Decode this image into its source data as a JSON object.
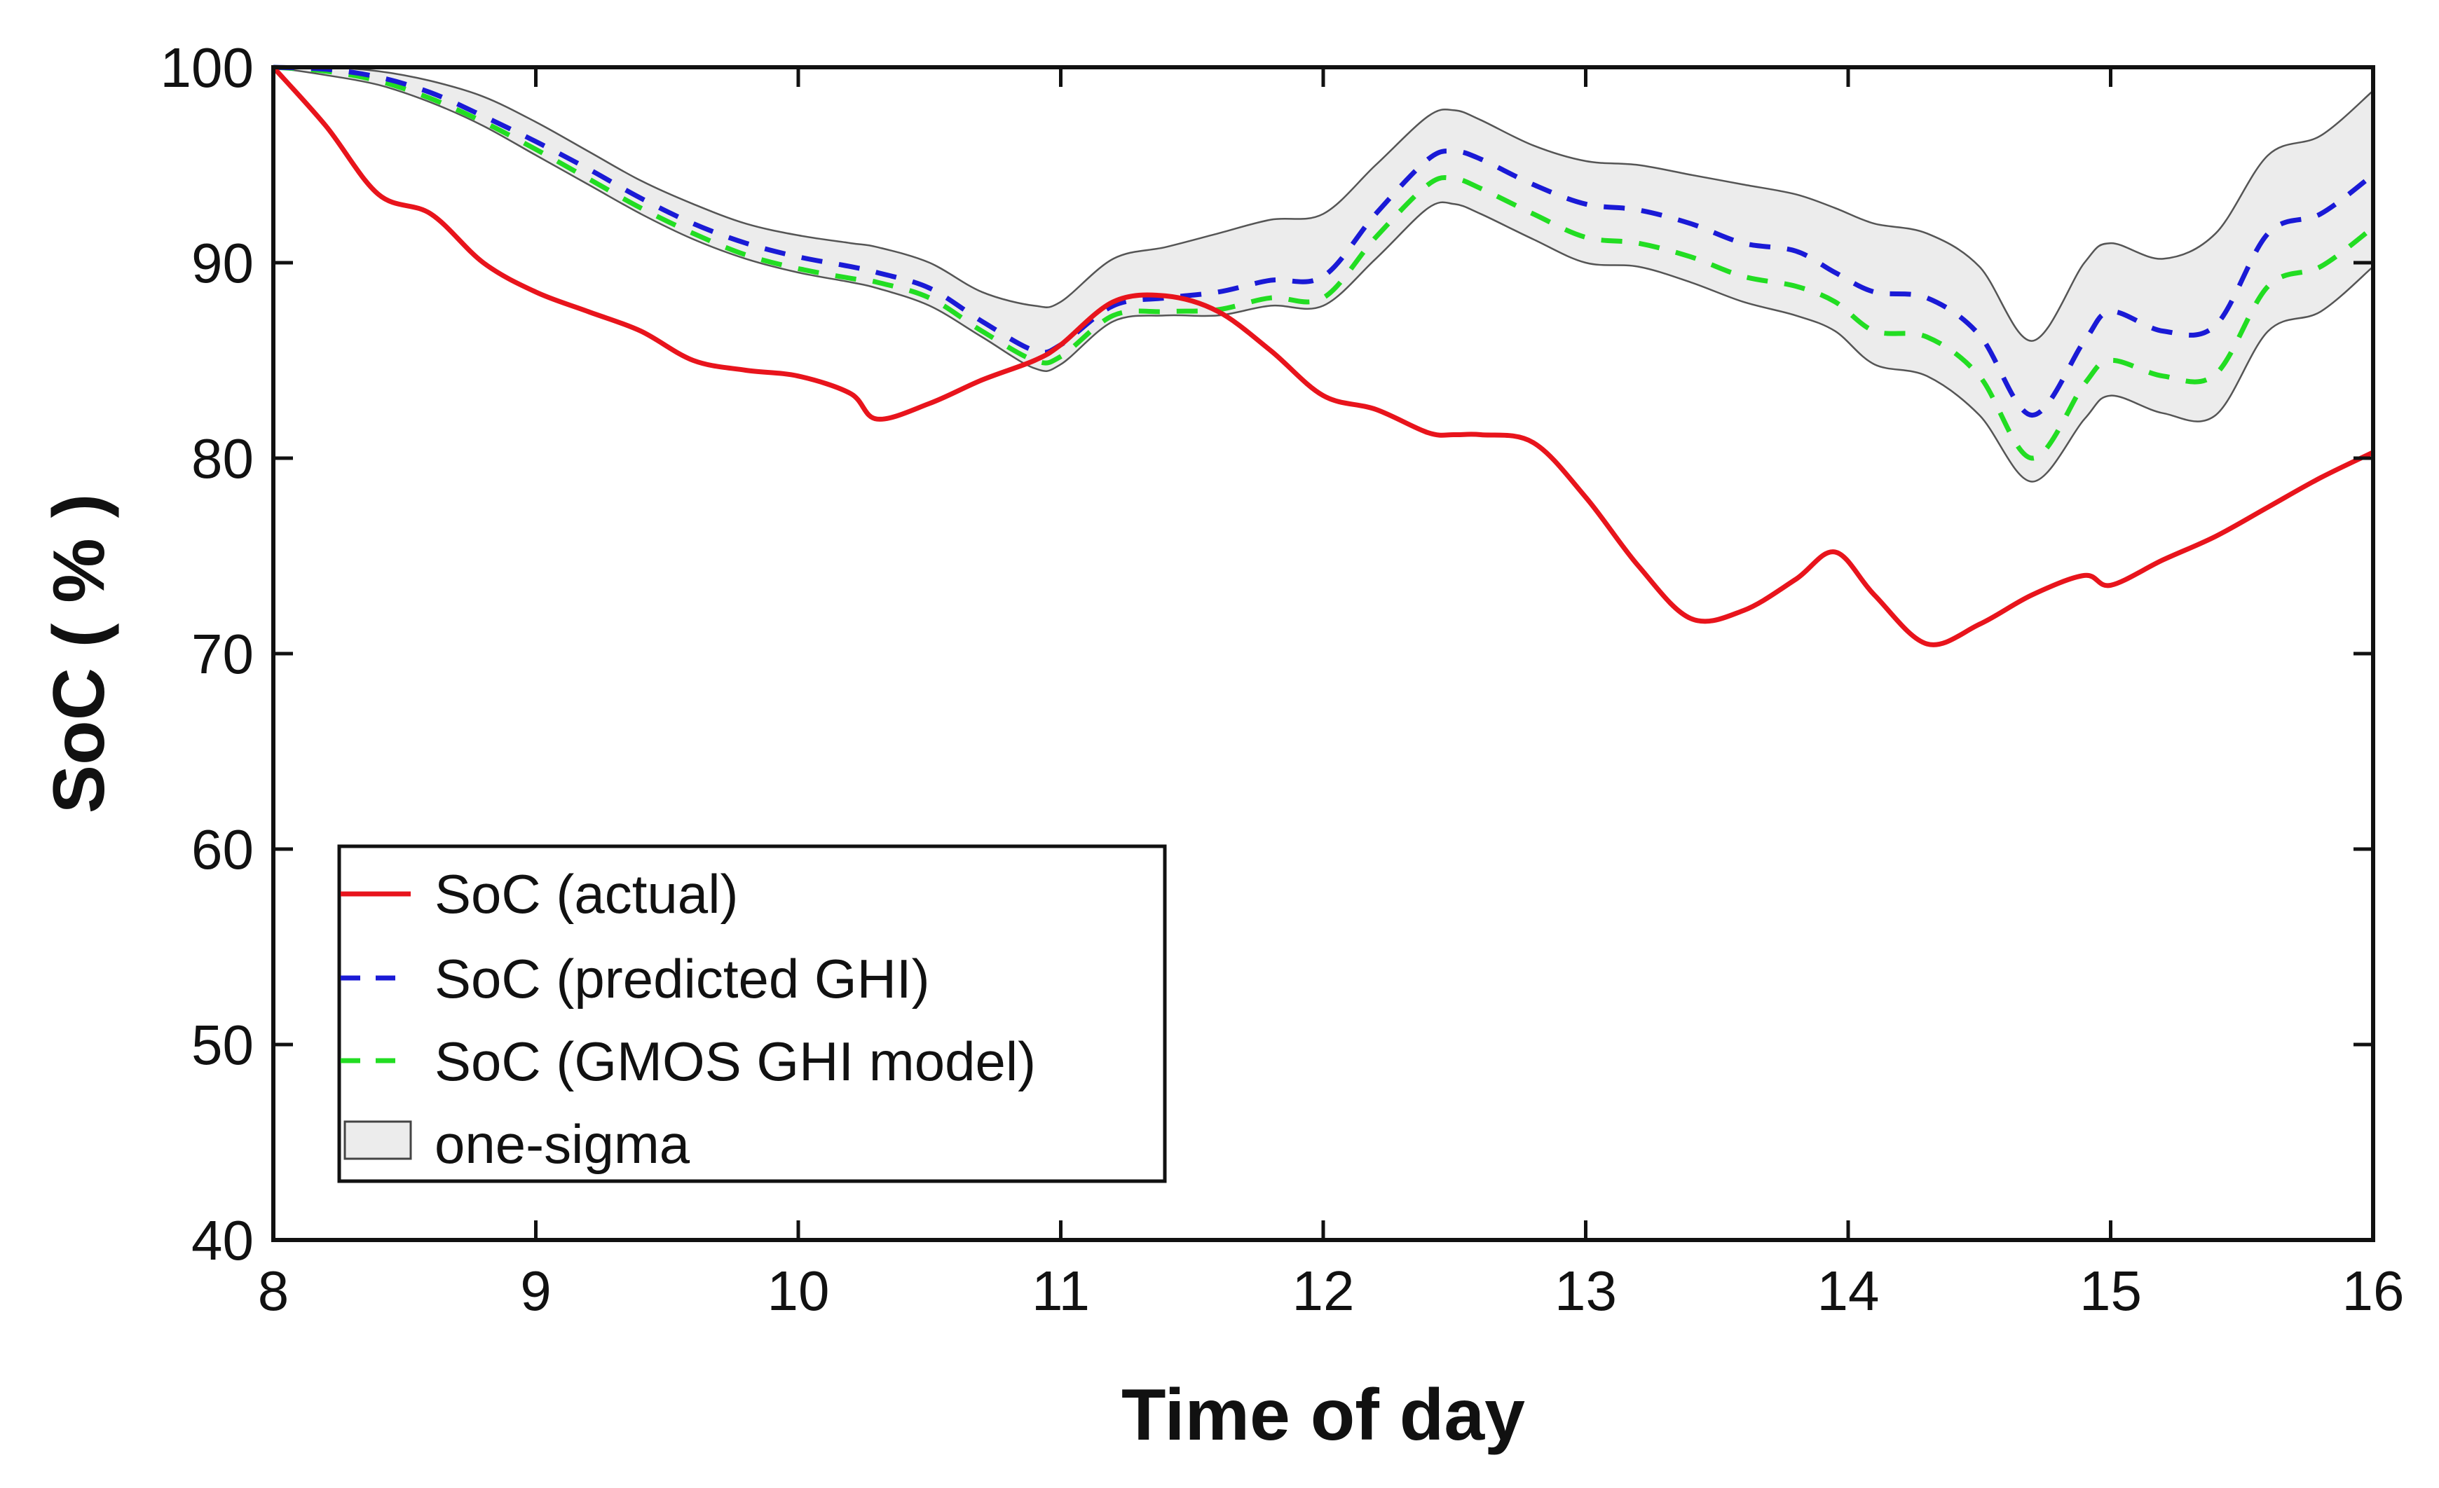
{
  "chart_data": {
    "type": "line",
    "xlabel": "Time of day",
    "ylabel": "SoC ( % )",
    "xlim": [
      8,
      16
    ],
    "ylim": [
      40,
      100
    ],
    "xticks": [
      8,
      9,
      10,
      11,
      12,
      13,
      14,
      15,
      16
    ],
    "yticks": [
      40,
      50,
      60,
      70,
      80,
      90,
      100
    ],
    "grid": false,
    "legend_position": "bottom-left",
    "legend": [
      {
        "label": "SoC (actual)",
        "style": "solid",
        "color": "#e8141c"
      },
      {
        "label": "SoC (predicted GHI)",
        "style": "dashed",
        "color": "#1a1ad6"
      },
      {
        "label": "SoC (GMOS GHI model)",
        "style": "dashed",
        "color": "#22dd22"
      },
      {
        "label": "one-sigma",
        "style": "band",
        "color": "#ececec"
      }
    ],
    "x": [
      8.0,
      8.2,
      8.4,
      8.6,
      8.8,
      9.0,
      9.2,
      9.4,
      9.6,
      9.8,
      10.0,
      10.2,
      10.3,
      10.5,
      10.7,
      10.9,
      11.0,
      11.2,
      11.4,
      11.6,
      11.8,
      12.0,
      12.2,
      12.4,
      12.5,
      12.6,
      12.8,
      13.0,
      13.2,
      13.4,
      13.6,
      13.8,
      13.95,
      14.1,
      14.3,
      14.5,
      14.7,
      14.9,
      15.0,
      15.2,
      15.4,
      15.6,
      15.8,
      16.0
    ],
    "series": [
      {
        "name": "SoC (actual)",
        "color": "#e8141c",
        "style": "solid",
        "values": [
          100,
          97,
          93.5,
          92.5,
          90,
          88.5,
          87.5,
          86.5,
          85,
          84.5,
          84.2,
          83.3,
          82,
          82.8,
          84,
          85,
          85.8,
          88,
          88.3,
          87.5,
          85.5,
          83.2,
          82.5,
          81.3,
          81.2,
          81.2,
          80.8,
          78,
          74.5,
          71.8,
          72.2,
          73.8,
          75.2,
          73,
          70.5,
          71.5,
          73,
          74,
          73.5,
          74.8,
          76,
          77.5,
          79,
          80.3
        ]
      },
      {
        "name": "SoC (predicted GHI)",
        "color": "#1a1ad6",
        "style": "dashed",
        "values": [
          100,
          99.9,
          99.5,
          98.7,
          97.5,
          96.2,
          94.8,
          93.3,
          92,
          91,
          90.3,
          89.8,
          89.5,
          88.7,
          87,
          85.5,
          85.8,
          87.8,
          88.2,
          88.5,
          89.1,
          89.3,
          92.5,
          95.3,
          95.7,
          95.3,
          94,
          93,
          92.7,
          92,
          91,
          90.6,
          89.5,
          88.5,
          88.2,
          86.3,
          82.2,
          86,
          87.5,
          86.5,
          86.8,
          91.5,
          92.5,
          94.5
        ]
      },
      {
        "name": "SoC (GMOS GHI model)",
        "color": "#22dd22",
        "style": "dashed",
        "values": [
          100,
          99.8,
          99.3,
          98.4,
          97.2,
          95.8,
          94.3,
          92.8,
          91.5,
          90.4,
          89.7,
          89.2,
          89,
          88.2,
          86.5,
          85,
          85.2,
          87.3,
          87.5,
          87.6,
          88.2,
          88.2,
          91.3,
          94,
          94.3,
          93.8,
          92.5,
          91.3,
          91,
          90.3,
          89.3,
          88.8,
          88,
          86.5,
          86.2,
          84.2,
          80,
          83.8,
          85,
          84.2,
          84.3,
          88.8,
          89.8,
          91.8
        ]
      }
    ],
    "band": {
      "name": "one-sigma",
      "upper": [
        100,
        100,
        99.8,
        99.3,
        98.5,
        97.2,
        95.7,
        94.2,
        93,
        92,
        91.4,
        91,
        90.8,
        90,
        88.5,
        87.8,
        88,
        90.2,
        90.8,
        91.5,
        92.2,
        92.5,
        95,
        97.5,
        97.8,
        97.3,
        96,
        95.2,
        95,
        94.5,
        94,
        93.5,
        92.8,
        92,
        91.5,
        89.8,
        86,
        90,
        91,
        90.2,
        91.5,
        95.5,
        96.5,
        98.8
      ],
      "lower": [
        100,
        99.6,
        99.1,
        98.2,
        97,
        95.5,
        94,
        92.5,
        91.2,
        90.2,
        89.5,
        89,
        88.7,
        87.8,
        86.2,
        84.6,
        84.8,
        87,
        87.3,
        87.3,
        87.8,
        87.8,
        90.2,
        92.8,
        93,
        92.5,
        91.2,
        90,
        89.8,
        89,
        88,
        87.3,
        86.5,
        84.8,
        84.2,
        82.2,
        78.8,
        82,
        83.2,
        82.3,
        82.2,
        86.5,
        87.5,
        89.8
      ]
    }
  }
}
